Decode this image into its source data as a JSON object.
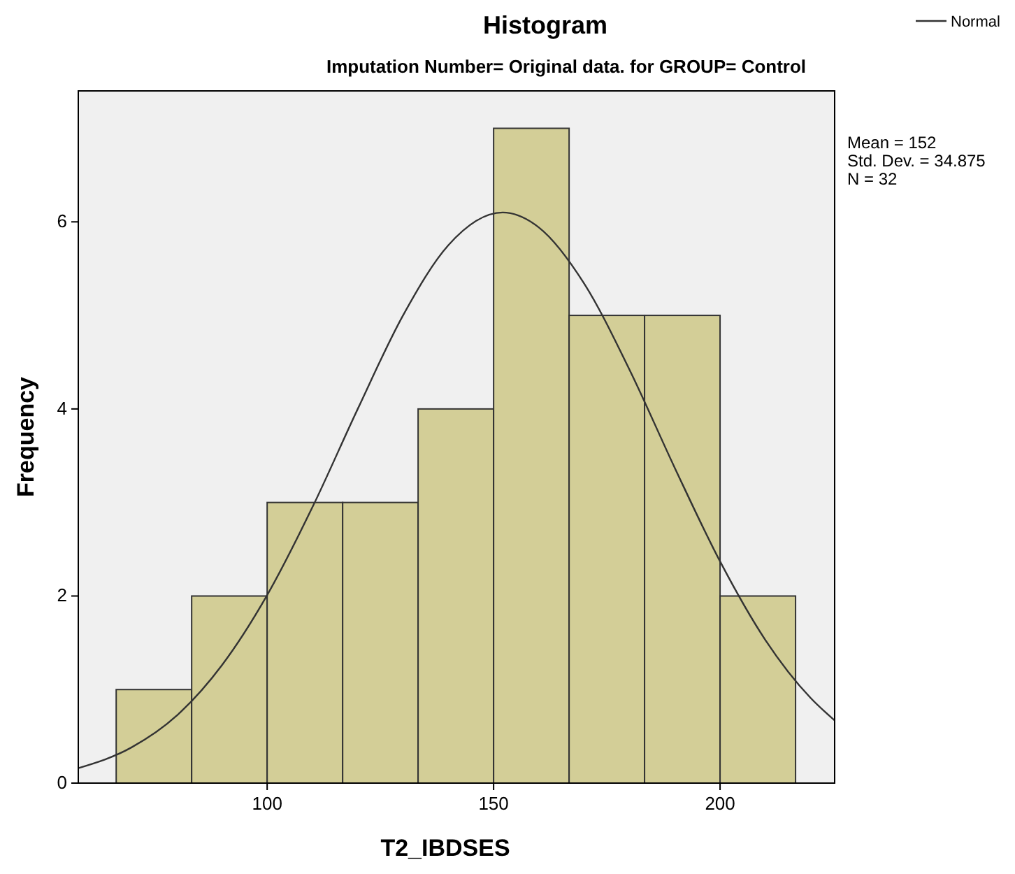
{
  "chart_data": {
    "type": "histogram",
    "title": "Histogram",
    "subtitle": "Imputation Number= Original data.  for GROUP= Control",
    "xlabel": "T2_IBDSES",
    "ylabel": "Frequency",
    "bins": [
      66.67,
      83.33,
      100,
      116.67,
      133.33,
      150,
      166.67,
      183.33,
      200,
      216.67
    ],
    "series": [
      {
        "color": "#d3ce97",
        "values": [
          1,
          2,
          3,
          3,
          4,
          7,
          5,
          5,
          2
        ]
      },
      {
        "type": "line",
        "name": "Normal",
        "color": "#333333",
        "x": [
          58.3,
          70,
          80,
          90,
          100,
          110,
          120,
          130,
          140,
          152,
          160,
          170,
          180,
          190,
          200,
          210,
          220,
          225.3
        ],
        "values": [
          0.16,
          0.38,
          0.72,
          1.26,
          2.01,
          2.95,
          4.0,
          5.0,
          5.75,
          6.1,
          5.94,
          5.34,
          4.42,
          3.37,
          2.37,
          1.53,
          0.91,
          0.67
        ]
      }
    ],
    "xlim": [
      58.3,
      225.3
    ],
    "ylim": [
      0,
      7.4
    ],
    "xticks": [
      100,
      150,
      200
    ],
    "yticks": [
      0,
      2,
      4,
      6
    ],
    "annotations": [
      "Mean = 152",
      "Std. Dev. = 34.875",
      "N = 32"
    ],
    "legend": "top right",
    "marker": "none",
    "line_style": "solid",
    "grid": false
  }
}
